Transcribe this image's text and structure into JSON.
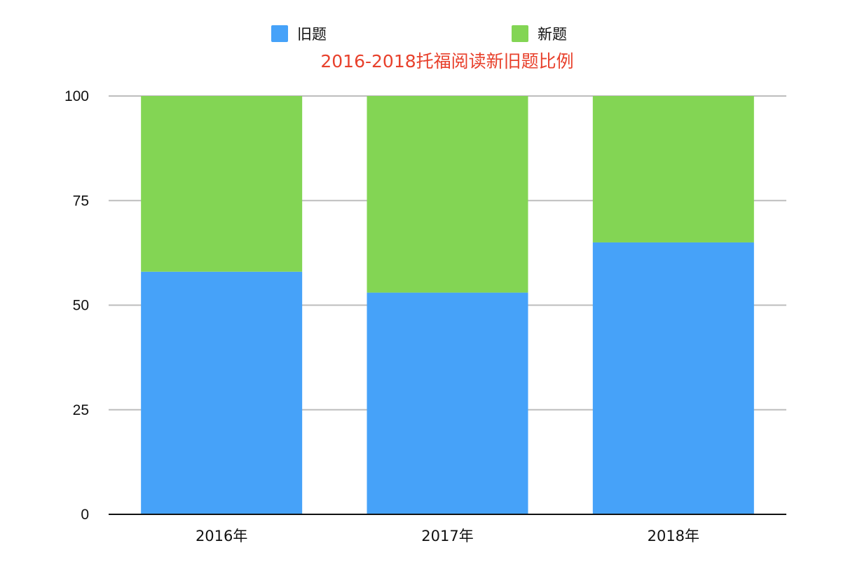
{
  "chart_data": {
    "type": "bar",
    "stacked": true,
    "title": "2016-2018托福阅读新旧题比例",
    "title_color": "#e8412c",
    "xlabel": "",
    "ylabel": "",
    "categories": [
      "2016年",
      "2017年",
      "2018年"
    ],
    "series": [
      {
        "name": "旧题",
        "color": "#46a2f9",
        "values": [
          58,
          53,
          65
        ]
      },
      {
        "name": "新题",
        "color": "#83d554",
        "values": [
          42,
          47,
          35
        ]
      }
    ],
    "ylim": [
      0,
      100
    ],
    "yticks": [
      0,
      25,
      50,
      75,
      100
    ],
    "grid": true,
    "grid_color": "#bdbdbd",
    "legend_position": "top"
  }
}
